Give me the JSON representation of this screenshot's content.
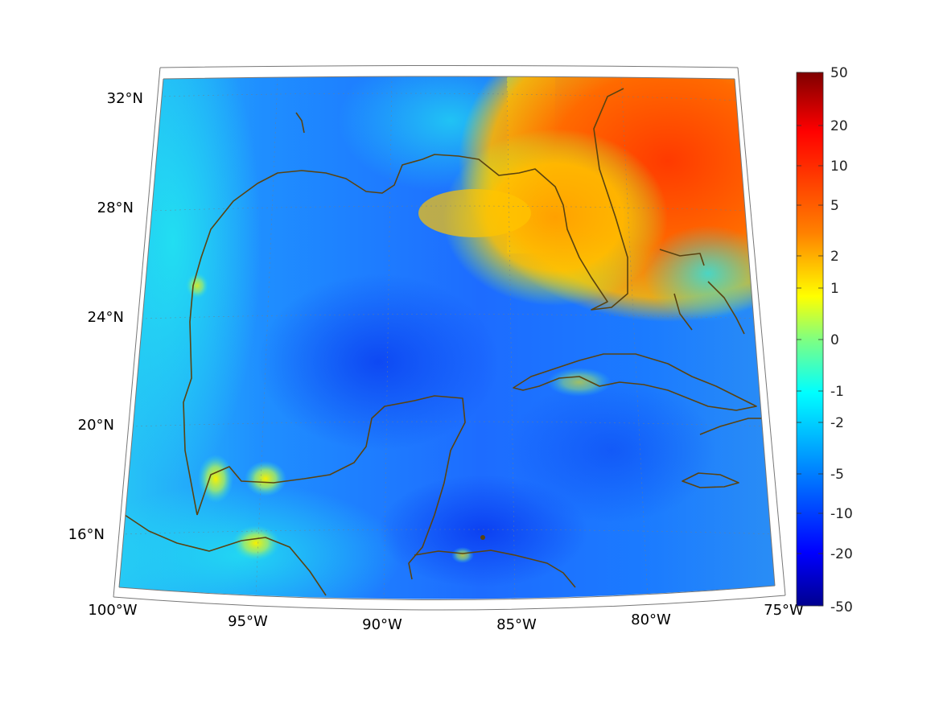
{
  "map": {
    "lon_ticks": [
      "100°W",
      "95°W",
      "90°W",
      "85°W",
      "80°W",
      "75°W"
    ],
    "lat_ticks": [
      "32°N",
      "28°N",
      "24°N",
      "20°N",
      "16°N"
    ],
    "lon_range": [
      -100,
      -75
    ],
    "lat_range": [
      14,
      33
    ],
    "projection": "conic",
    "coastline_color": "#5a4310"
  },
  "colorbar": {
    "colormap": "jet",
    "labels": [
      "50",
      "20",
      "10",
      "5",
      "2",
      "1",
      "0",
      "-1",
      "-2",
      "-5",
      "-10",
      "-20",
      "-50"
    ],
    "colors": [
      "#7f0000",
      "#ff0000",
      "#ff8000",
      "#ffff00",
      "#80ff80",
      "#00ffff",
      "#0080ff",
      "#0000ff",
      "#00008f"
    ]
  }
}
